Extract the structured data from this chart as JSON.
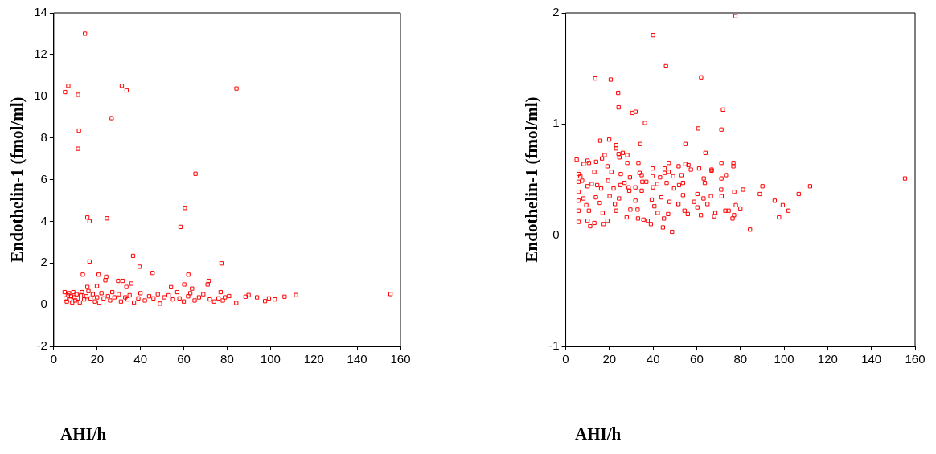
{
  "chart_data": [
    {
      "type": "scatter",
      "xlabel": "AHI/h",
      "ylabel": "Endothelin-1 (fmol/ml)",
      "xlim": [
        0,
        160
      ],
      "xticks": [
        0,
        20,
        40,
        60,
        80,
        100,
        120,
        140,
        160
      ],
      "ylim": [
        -2,
        14
      ],
      "yticks": [
        -2,
        0,
        2,
        4,
        6,
        8,
        10,
        12,
        14
      ],
      "grid": false,
      "legend": false,
      "marker": "square",
      "series": [
        {
          "color": "#ff0000",
          "x": [
            14.4,
            6.7,
            5.2,
            11.2,
            31.4,
            33.6,
            84.3,
            26.7,
            11.6,
            11.2,
            65.4,
            60.5,
            58.5,
            15.5,
            16.5,
            24.5,
            16.5,
            36.6,
            39.6,
            45.6,
            77.4,
            13.4,
            20.7,
            24.2,
            23.8,
            29.7,
            31.8,
            35.8,
            62.1,
            71.5,
            71,
            60.2,
            19.9,
            15.5,
            33.5,
            54.1,
            63.8,
            84.2,
            80.9,
            88.5,
            89.9,
            93.8,
            97.5,
            99.3,
            102,
            106.5,
            111.8,
            155.4,
            5,
            5.5,
            6,
            6.5,
            7,
            7.5,
            8,
            8.5,
            9,
            9.5,
            10,
            10.5,
            11,
            12,
            12.5,
            13,
            14,
            15,
            16,
            17,
            18,
            19,
            20,
            21,
            22,
            23,
            25,
            26,
            27,
            28,
            30,
            31,
            33,
            34,
            35,
            37,
            39,
            40,
            42,
            44,
            46,
            48,
            49,
            51,
            53,
            55,
            57,
            58,
            60,
            62,
            63,
            65,
            67,
            69,
            72,
            74,
            76,
            77,
            78,
            79
          ],
          "values": [
            13.0,
            10.5,
            10.2,
            10.07,
            10.5,
            10.28,
            10.37,
            8.95,
            8.35,
            7.48,
            6.28,
            4.64,
            3.73,
            4.18,
            4.0,
            4.14,
            2.07,
            2.34,
            1.82,
            1.52,
            1.98,
            1.44,
            1.44,
            1.34,
            1.17,
            1.14,
            1.14,
            1.01,
            1.44,
            1.14,
            0.97,
            0.97,
            0.89,
            0.85,
            0.85,
            0.84,
            0.77,
            0.08,
            0.41,
            0.38,
            0.46,
            0.35,
            0.17,
            0.3,
            0.25,
            0.38,
            0.46,
            0.51,
            0.6,
            0.3,
            0.15,
            0.45,
            0.55,
            0.25,
            0.4,
            0.1,
            0.6,
            0.35,
            0.2,
            0.5,
            0.3,
            0.1,
            0.45,
            0.6,
            0.25,
            0.4,
            0.65,
            0.3,
            0.5,
            0.15,
            0.35,
            0.1,
            0.55,
            0.3,
            0.4,
            0.2,
            0.6,
            0.35,
            0.5,
            0.15,
            0.35,
            0.25,
            0.45,
            0.1,
            0.3,
            0.55,
            0.2,
            0.4,
            0.3,
            0.5,
            0.05,
            0.35,
            0.45,
            0.25,
            0.6,
            0.3,
            0.15,
            0.4,
            0.55,
            0.2,
            0.35,
            0.5,
            0.25,
            0.15,
            0.3,
            0.6,
            0.2,
            0.35
          ]
        }
      ]
    },
    {
      "type": "scatter",
      "xlabel": "AHI/h",
      "ylabel": "Endothelin-1 (fmol/ml)",
      "xlim": [
        0,
        160
      ],
      "xticks": [
        0,
        20,
        40,
        60,
        80,
        100,
        120,
        140,
        160
      ],
      "ylim": [
        -1,
        2
      ],
      "yticks": [
        -1,
        0,
        1,
        2
      ],
      "grid": false,
      "legend": false,
      "marker": "square",
      "series": [
        {
          "color": "#ff0000",
          "x": [
            77.7,
            40,
            45.9,
            13.5,
            20.6,
            62,
            24,
            24.2,
            30.5,
            32,
            72,
            36.3,
            60.7,
            71.3,
            15.8,
            19.9,
            23.1,
            23.1,
            34.2,
            54.8,
            64,
            24.2,
            26.1,
            28.2,
            24.6,
            5,
            10,
            16.6,
            17.8,
            8.2,
            10.6,
            13.9,
            19.1,
            28.2,
            33.3,
            47.2,
            71.3,
            76.8,
            76.8,
            54.8,
            51.7,
            56.2,
            39.8,
            45.3,
            57.3,
            61.1,
            66.8,
            5.9,
            13.1,
            20.9,
            25.2,
            33.8,
            45.3,
            47.1,
            66.8,
            6.7,
            29.4,
            34.8,
            39.8,
            43.2,
            49.2,
            53,
            73.4,
            63.2,
            71.3,
            155.4,
            5.9,
            7.5,
            10,
            11.9,
            14.4,
            16.2,
            19.4,
            21.9,
            25,
            26.9,
            28.8,
            31.9,
            35.1,
            36.9,
            40,
            41.9,
            46.2,
            49.6,
            51.9,
            53.7,
            60.3,
            63.7,
            71.2,
            77.2,
            81.2,
            88.9,
            90.1,
            106.7,
            111.9,
            95.7,
            99.4,
            102,
            97.7,
            84.4,
            5.9,
            5.9,
            5.9,
            5.9,
            8.1,
            9.4,
            10.6,
            11.2,
            10,
            13.1,
            13.8,
            15.6,
            16.9,
            17.4,
            19.1,
            20.1,
            22.5,
            23.1,
            24.4,
            27.9,
            29.1,
            29.6,
            31.9,
            32.9,
            33.1,
            34.8,
            35.6,
            37.5,
            39,
            39.4,
            40.6,
            42.1,
            43.8,
            44.5,
            45,
            46.9,
            47.5,
            48.7,
            51.6,
            53.7,
            54.4,
            55.9,
            58.8,
            60.3,
            61.9,
            63.1,
            64.9,
            66.5,
            68,
            68.5,
            71.4,
            73.1,
            74.6,
            76.4,
            77.1,
            77.9,
            80
          ],
          "values": [
            1.97,
            1.8,
            1.52,
            1.41,
            1.4,
            1.42,
            1.28,
            1.15,
            1.1,
            1.11,
            1.13,
            1.01,
            0.96,
            0.95,
            0.85,
            0.86,
            0.81,
            0.78,
            0.82,
            0.82,
            0.74,
            0.73,
            0.74,
            0.72,
            0.7,
            0.68,
            0.67,
            0.69,
            0.72,
            0.64,
            0.65,
            0.66,
            0.62,
            0.65,
            0.65,
            0.65,
            0.65,
            0.65,
            0.62,
            0.64,
            0.62,
            0.63,
            0.6,
            0.6,
            0.59,
            0.6,
            0.59,
            0.55,
            0.57,
            0.57,
            0.55,
            0.56,
            0.56,
            0.57,
            0.58,
            0.53,
            0.52,
            0.54,
            0.53,
            0.52,
            0.53,
            0.54,
            0.54,
            0.51,
            0.51,
            0.51,
            0.48,
            0.49,
            0.44,
            0.46,
            0.45,
            0.42,
            0.49,
            0.42,
            0.45,
            0.47,
            0.43,
            0.43,
            0.48,
            0.48,
            0.43,
            0.46,
            0.47,
            0.42,
            0.45,
            0.47,
            0.37,
            0.47,
            0.41,
            0.39,
            0.41,
            0.37,
            0.44,
            0.37,
            0.44,
            0.31,
            0.27,
            0.22,
            0.16,
            0.05,
            0.39,
            0.31,
            0.22,
            0.12,
            0.33,
            0.27,
            0.22,
            0.08,
            0.13,
            0.11,
            0.34,
            0.29,
            0.2,
            0.1,
            0.13,
            0.35,
            0.28,
            0.22,
            0.33,
            0.16,
            0.4,
            0.23,
            0.31,
            0.23,
            0.15,
            0.4,
            0.14,
            0.13,
            0.1,
            0.32,
            0.26,
            0.2,
            0.34,
            0.07,
            0.15,
            0.19,
            0.3,
            0.03,
            0.28,
            0.36,
            0.22,
            0.19,
            0.3,
            0.25,
            0.18,
            0.33,
            0.28,
            0.35,
            0.17,
            0.2,
            0.35,
            0.22,
            0.22,
            0.15,
            0.18,
            0.27,
            0.24
          ]
        }
      ]
    }
  ]
}
